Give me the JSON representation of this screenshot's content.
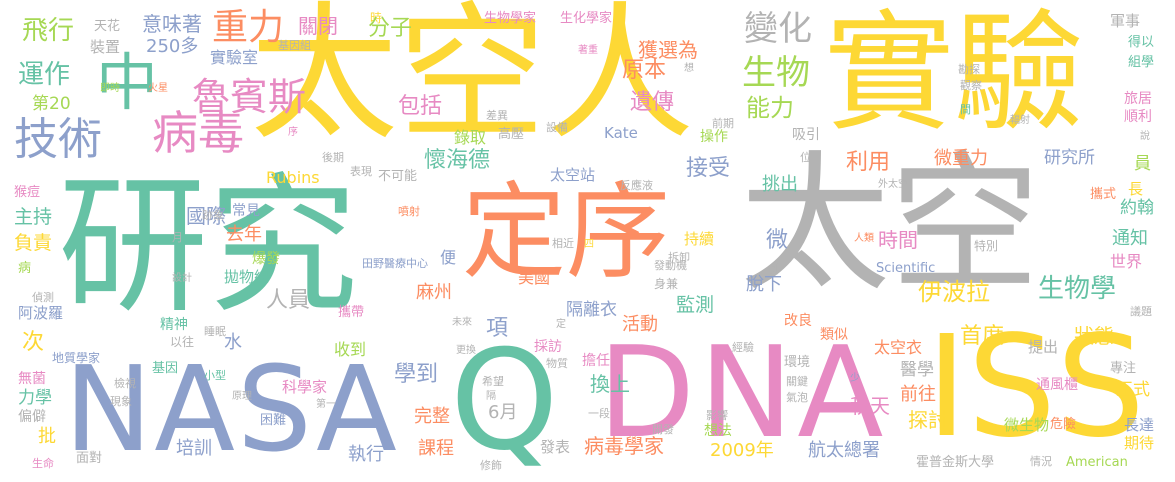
{
  "words": [
    {
      "text": "太空人",
      "color": "#fdd835",
      "orientation": "h"
    },
    {
      "text": "實驗",
      "color": "#fdd835",
      "orientation": "h"
    },
    {
      "text": "研究",
      "color": "#66c2a5",
      "orientation": "h"
    },
    {
      "text": "定序",
      "color": "#fc8d62",
      "orientation": "h"
    },
    {
      "text": "太空",
      "color": "#b3b3b3",
      "orientation": "h"
    },
    {
      "text": "NASA",
      "color": "#8da0cb",
      "orientation": "h"
    },
    {
      "text": "DNA",
      "color": "#e78ac3",
      "orientation": "h"
    },
    {
      "text": "ISS",
      "color": "#fdd835",
      "orientation": "h"
    },
    {
      "text": "Q",
      "color": "#66c2a5",
      "orientation": "h"
    },
    {
      "text": "中",
      "color": "#66c2a5",
      "orientation": "h"
    },
    {
      "text": "病毒",
      "color": "#e78ac3",
      "orientation": "h"
    },
    {
      "text": "技術",
      "color": "#8da0cb",
      "orientation": "h"
    },
    {
      "text": "魯賓斯",
      "color": "#e78ac3",
      "orientation": "h"
    },
    {
      "text": "重力",
      "color": "#fc8d62",
      "orientation": "h"
    },
    {
      "text": "變化",
      "color": "#b3b3b3",
      "orientation": "h"
    },
    {
      "text": "生物",
      "color": "#a6d854",
      "orientation": "h"
    },
    {
      "text": "飛行",
      "color": "#a6d854",
      "orientation": "h"
    },
    {
      "text": "運作",
      "color": "#66c2a5",
      "orientation": "h"
    },
    {
      "text": "意味著",
      "color": "#8da0cb",
      "orientation": "h"
    },
    {
      "text": "250多",
      "color": "#8da0cb",
      "orientation": "h"
    },
    {
      "text": "實驗室",
      "color": "#8da0cb",
      "orientation": "h"
    },
    {
      "text": "天花",
      "color": "#b3b3b3",
      "orientation": "h"
    },
    {
      "text": "裝置",
      "color": "#b3b3b3",
      "orientation": "h"
    },
    {
      "text": "關閉",
      "color": "#e78ac3",
      "orientation": "h"
    },
    {
      "text": "基因組",
      "color": "#b3b3b3",
      "orientation": "h"
    },
    {
      "text": "時",
      "color": "#fdd835",
      "orientation": "h"
    },
    {
      "text": "分子",
      "color": "#a6d854",
      "orientation": "h"
    },
    {
      "text": "生物學家",
      "color": "#e78ac3",
      "orientation": "h"
    },
    {
      "text": "生化學家",
      "color": "#e78ac3",
      "orientation": "h"
    },
    {
      "text": "獲選為",
      "color": "#fc8d62",
      "orientation": "h"
    },
    {
      "text": "原本",
      "color": "#fc8d62",
      "orientation": "h"
    },
    {
      "text": "遺傳",
      "color": "#e78ac3",
      "orientation": "h"
    },
    {
      "text": "包括",
      "color": "#e78ac3",
      "orientation": "h"
    },
    {
      "text": "能力",
      "color": "#a6d854",
      "orientation": "h"
    },
    {
      "text": "錄取",
      "color": "#a6d854",
      "orientation": "h"
    },
    {
      "text": "高壓",
      "color": "#b3b3b3",
      "orientation": "h"
    },
    {
      "text": "Kate",
      "color": "#8da0cb",
      "orientation": "h"
    },
    {
      "text": "第20",
      "color": "#a6d854",
      "orientation": "h"
    },
    {
      "text": "即時",
      "color": "#a6d854",
      "orientation": "h"
    },
    {
      "text": "火星",
      "color": "#fc8d62",
      "orientation": "h"
    },
    {
      "text": "著重",
      "color": "#e78ac3",
      "orientation": "h"
    },
    {
      "text": "想",
      "color": "#b3b3b3",
      "orientation": "h"
    },
    {
      "text": "差異",
      "color": "#b3b3b3",
      "orientation": "h"
    },
    {
      "text": "設備",
      "color": "#b3b3b3",
      "orientation": "h"
    },
    {
      "text": "前期",
      "color": "#b3b3b3",
      "orientation": "h"
    },
    {
      "text": "操作",
      "color": "#a6d854",
      "orientation": "h"
    },
    {
      "text": "吸引",
      "color": "#b3b3b3",
      "orientation": "h"
    },
    {
      "text": "軍事",
      "color": "#b3b3b3",
      "orientation": "h"
    },
    {
      "text": "得以",
      "color": "#66c2a5",
      "orientation": "h"
    },
    {
      "text": "組學",
      "color": "#66c2a5",
      "orientation": "h"
    },
    {
      "text": "勘探",
      "color": "#b3b3b3",
      "orientation": "h"
    },
    {
      "text": "觀察",
      "color": "#b3b3b3",
      "orientation": "h"
    },
    {
      "text": "旅居",
      "color": "#e78ac3",
      "orientation": "h"
    },
    {
      "text": "順利",
      "color": "#e78ac3",
      "orientation": "h"
    },
    {
      "text": "間",
      "color": "#66c2a5",
      "orientation": "h"
    },
    {
      "text": "輻射",
      "color": "#b3b3b3",
      "orientation": "h"
    },
    {
      "text": "說",
      "color": "#b3b3b3",
      "orientation": "h"
    },
    {
      "text": "位",
      "color": "#b3b3b3",
      "orientation": "h"
    },
    {
      "text": "微重力",
      "color": "#fc8d62",
      "orientation": "h"
    },
    {
      "text": "研究所",
      "color": "#8da0cb",
      "orientation": "h"
    },
    {
      "text": "員",
      "color": "#a6d854",
      "orientation": "h"
    },
    {
      "text": "外太空",
      "color": "#b3b3b3",
      "orientation": "h"
    },
    {
      "text": "攜式",
      "color": "#fc8d62",
      "orientation": "h"
    },
    {
      "text": "長",
      "color": "#fdd835",
      "orientation": "h"
    },
    {
      "text": "約翰",
      "color": "#66c2a5",
      "orientation": "h"
    },
    {
      "text": "序",
      "color": "#e78ac3",
      "orientation": "h"
    },
    {
      "text": "後期",
      "color": "#b3b3b3",
      "orientation": "h"
    },
    {
      "text": "表現",
      "color": "#b3b3b3",
      "orientation": "h"
    },
    {
      "text": "不可能",
      "color": "#b3b3b3",
      "orientation": "h"
    },
    {
      "text": "懷海德",
      "color": "#66c2a5",
      "orientation": "h"
    },
    {
      "text": "太空站",
      "color": "#8da0cb",
      "orientation": "h"
    },
    {
      "text": "反應液",
      "color": "#b3b3b3",
      "orientation": "h"
    },
    {
      "text": "接受",
      "color": "#8da0cb",
      "orientation": "h"
    },
    {
      "text": "挑出",
      "color": "#66c2a5",
      "orientation": "h"
    },
    {
      "text": "利用",
      "color": "#fc8d62",
      "orientation": "h"
    },
    {
      "text": "Rubins",
      "color": "#fdd835",
      "orientation": "h"
    },
    {
      "text": "猴痘",
      "color": "#e78ac3",
      "orientation": "h"
    },
    {
      "text": "主持",
      "color": "#66c2a5",
      "orientation": "h"
    },
    {
      "text": "負責",
      "color": "#fdd835",
      "orientation": "h"
    },
    {
      "text": "病",
      "color": "#a6d854",
      "orientation": "h"
    },
    {
      "text": "國際",
      "color": "#8da0cb",
      "orientation": "h"
    },
    {
      "text": "跡象",
      "color": "#b3b3b3",
      "orientation": "h"
    },
    {
      "text": "常見",
      "color": "#8da0cb",
      "orientation": "h"
    },
    {
      "text": "去年",
      "color": "#fc8d62",
      "orientation": "h"
    },
    {
      "text": "月",
      "color": "#b3b3b3",
      "orientation": "h"
    },
    {
      "text": "噴射",
      "color": "#fc8d62",
      "orientation": "h"
    },
    {
      "text": "相近",
      "color": "#b3b3b3",
      "orientation": "h"
    },
    {
      "text": "四",
      "color": "#fdd835",
      "orientation": "h"
    },
    {
      "text": "持續",
      "color": "#fdd835",
      "orientation": "h"
    },
    {
      "text": "拆卸",
      "color": "#b3b3b3",
      "orientation": "h"
    },
    {
      "text": "微",
      "color": "#8da0cb",
      "orientation": "h"
    },
    {
      "text": "時間",
      "color": "#e78ac3",
      "orientation": "h"
    },
    {
      "text": "特別",
      "color": "#b3b3b3",
      "orientation": "h"
    },
    {
      "text": "人類",
      "color": "#fc8d62",
      "orientation": "h"
    },
    {
      "text": "伊波拉",
      "color": "#fdd835",
      "orientation": "h"
    },
    {
      "text": "通知",
      "color": "#66c2a5",
      "orientation": "h"
    },
    {
      "text": "世界",
      "color": "#e78ac3",
      "orientation": "h"
    },
    {
      "text": "爆發",
      "color": "#a6d854",
      "orientation": "h"
    },
    {
      "text": "拋物線",
      "color": "#66c2a5",
      "orientation": "h"
    },
    {
      "text": "田野醫療中心",
      "color": "#8da0cb",
      "orientation": "h"
    },
    {
      "text": "便",
      "color": "#8da0cb",
      "orientation": "h"
    },
    {
      "text": "發動機",
      "color": "#b3b3b3",
      "orientation": "h"
    },
    {
      "text": "身兼",
      "color": "#b3b3b3",
      "orientation": "h"
    },
    {
      "text": "美國",
      "color": "#fc8d62",
      "orientation": "h"
    },
    {
      "text": "外",
      "color": "#b3b3b3",
      "orientation": "h"
    },
    {
      "text": "脫下",
      "color": "#8da0cb",
      "orientation": "h"
    },
    {
      "text": "Scientific",
      "color": "#8da0cb",
      "orientation": "h"
    },
    {
      "text": "生物學",
      "color": "#66c2a5",
      "orientation": "h"
    },
    {
      "text": "偵測",
      "color": "#b3b3b3",
      "orientation": "h"
    },
    {
      "text": "設計",
      "color": "#b3b3b3",
      "orientation": "h"
    },
    {
      "text": "人員",
      "color": "#b3b3b3",
      "orientation": "h"
    },
    {
      "text": "麻州",
      "color": "#fc8d62",
      "orientation": "h"
    },
    {
      "text": "監測",
      "color": "#66c2a5",
      "orientation": "h"
    },
    {
      "text": "阿波羅",
      "color": "#8da0cb",
      "orientation": "h"
    },
    {
      "text": "精神",
      "color": "#66c2a5",
      "orientation": "h"
    },
    {
      "text": "睡眠",
      "color": "#b3b3b3",
      "orientation": "h"
    },
    {
      "text": "攜帶",
      "color": "#e78ac3",
      "orientation": "h"
    },
    {
      "text": "隔離衣",
      "color": "#8da0cb",
      "orientation": "h"
    },
    {
      "text": "活動",
      "color": "#fc8d62",
      "orientation": "h"
    },
    {
      "text": "未來",
      "color": "#b3b3b3",
      "orientation": "h"
    },
    {
      "text": "定",
      "color": "#b3b3b3",
      "orientation": "h"
    },
    {
      "text": "改良",
      "color": "#fc8d62",
      "orientation": "h"
    },
    {
      "text": "類似",
      "color": "#fc8d62",
      "orientation": "h"
    },
    {
      "text": "首度",
      "color": "#fdd835",
      "orientation": "h"
    },
    {
      "text": "狀態",
      "color": "#fdd835",
      "orientation": "h"
    },
    {
      "text": "議題",
      "color": "#b3b3b3",
      "orientation": "h"
    },
    {
      "text": "次",
      "color": "#fdd835",
      "orientation": "h"
    },
    {
      "text": "以往",
      "color": "#b3b3b3",
      "orientation": "h"
    },
    {
      "text": "水",
      "color": "#8da0cb",
      "orientation": "h"
    },
    {
      "text": "項",
      "color": "#8da0cb",
      "orientation": "h"
    },
    {
      "text": "收到",
      "color": "#a6d854",
      "orientation": "h"
    },
    {
      "text": "更換",
      "color": "#b3b3b3",
      "orientation": "h"
    },
    {
      "text": "採訪",
      "color": "#e78ac3",
      "orientation": "h"
    },
    {
      "text": "經驗",
      "color": "#b3b3b3",
      "orientation": "h"
    },
    {
      "text": "太空衣",
      "color": "#fc8d62",
      "orientation": "h"
    },
    {
      "text": "提出",
      "color": "#b3b3b3",
      "orientation": "h"
    },
    {
      "text": "地質學家",
      "color": "#8da0cb",
      "orientation": "h"
    },
    {
      "text": "基因",
      "color": "#66c2a5",
      "orientation": "h"
    },
    {
      "text": "小型",
      "color": "#66c2a5",
      "orientation": "h"
    },
    {
      "text": "物質",
      "color": "#b3b3b3",
      "orientation": "h"
    },
    {
      "text": "擔任",
      "color": "#e78ac3",
      "orientation": "h"
    },
    {
      "text": "環境",
      "color": "#b3b3b3",
      "orientation": "h"
    },
    {
      "text": "醫學",
      "color": "#b3b3b3",
      "orientation": "h"
    },
    {
      "text": "學到",
      "color": "#8da0cb",
      "orientation": "h"
    },
    {
      "text": "專注",
      "color": "#b3b3b3",
      "orientation": "h"
    },
    {
      "text": "無菌",
      "color": "#e78ac3",
      "orientation": "h"
    },
    {
      "text": "力學",
      "color": "#66c2a5",
      "orientation": "h"
    },
    {
      "text": "偏僻",
      "color": "#b3b3b3",
      "orientation": "h"
    },
    {
      "text": "檢視",
      "color": "#b3b3b3",
      "orientation": "h"
    },
    {
      "text": "現象",
      "color": "#b3b3b3",
      "orientation": "h"
    },
    {
      "text": "原理",
      "color": "#b3b3b3",
      "orientation": "h"
    },
    {
      "text": "科學家",
      "color": "#e78ac3",
      "orientation": "h"
    },
    {
      "text": "第一",
      "color": "#b3b3b3",
      "orientation": "h"
    },
    {
      "text": "希望",
      "color": "#b3b3b3",
      "orientation": "h"
    },
    {
      "text": "隔",
      "color": "#b3b3b3",
      "orientation": "h"
    },
    {
      "text": "換上",
      "color": "#66c2a5",
      "orientation": "h"
    },
    {
      "text": "關鍵",
      "color": "#b3b3b3",
      "orientation": "h"
    },
    {
      "text": "氣泡",
      "color": "#b3b3b3",
      "orientation": "h"
    },
    {
      "text": "少",
      "color": "#8da0cb",
      "orientation": "h"
    },
    {
      "text": "前往",
      "color": "#fc8d62",
      "orientation": "h"
    },
    {
      "text": "通風櫃",
      "color": "#e78ac3",
      "orientation": "h"
    },
    {
      "text": "正式",
      "color": "#fdd835",
      "orientation": "h"
    },
    {
      "text": "批",
      "color": "#fdd835",
      "orientation": "h"
    },
    {
      "text": "困難",
      "color": "#8da0cb",
      "orientation": "h"
    },
    {
      "text": "完整",
      "color": "#fc8d62",
      "orientation": "h"
    },
    {
      "text": "6月",
      "color": "#b3b3b3",
      "orientation": "h"
    },
    {
      "text": "一段",
      "color": "#b3b3b3",
      "orientation": "h"
    },
    {
      "text": "影響",
      "color": "#b3b3b3",
      "orientation": "h"
    },
    {
      "text": "秋天",
      "color": "#e78ac3",
      "orientation": "h"
    },
    {
      "text": "探討",
      "color": "#fdd835",
      "orientation": "h"
    },
    {
      "text": "微生物",
      "color": "#a6d854",
      "orientation": "h"
    },
    {
      "text": "危險",
      "color": "#fc8d62",
      "orientation": "h"
    },
    {
      "text": "長達",
      "color": "#8da0cb",
      "orientation": "h"
    },
    {
      "text": "期待",
      "color": "#fdd835",
      "orientation": "h"
    },
    {
      "text": "生命",
      "color": "#e78ac3",
      "orientation": "h"
    },
    {
      "text": "面對",
      "color": "#b3b3b3",
      "orientation": "h"
    },
    {
      "text": "培訓",
      "color": "#8da0cb",
      "orientation": "h"
    },
    {
      "text": "執行",
      "color": "#8da0cb",
      "orientation": "h"
    },
    {
      "text": "課程",
      "color": "#fc8d62",
      "orientation": "h"
    },
    {
      "text": "發表",
      "color": "#b3b3b3",
      "orientation": "h"
    },
    {
      "text": "修飾",
      "color": "#b3b3b3",
      "orientation": "h"
    },
    {
      "text": "病毒學家",
      "color": "#fc8d62",
      "orientation": "h"
    },
    {
      "text": "開發",
      "color": "#b3b3b3",
      "orientation": "h"
    },
    {
      "text": "想法",
      "color": "#a6d854",
      "orientation": "h"
    },
    {
      "text": "2009年",
      "color": "#fdd835",
      "orientation": "h"
    },
    {
      "text": "航太總署",
      "color": "#8da0cb",
      "orientation": "h"
    },
    {
      "text": "霍普金斯大學",
      "color": "#b3b3b3",
      "orientation": "h"
    },
    {
      "text": "情況",
      "color": "#b3b3b3",
      "orientation": "h"
    },
    {
      "text": "American",
      "color": "#a6d854",
      "orientation": "h"
    }
  ]
}
